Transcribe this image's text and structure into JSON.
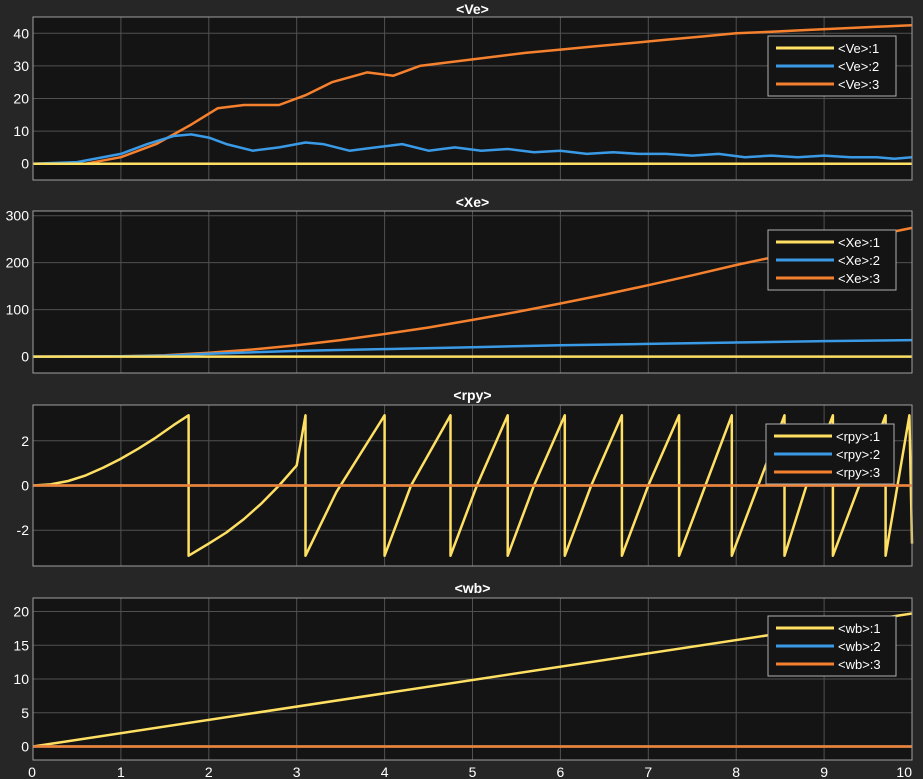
{
  "colors": {
    "background": "#262626",
    "plot_background": "#141414",
    "grid": "#505050",
    "axis_frame": "#a0a0a0",
    "series_1": "#ffe063",
    "series_2": "#3a9ae6",
    "series_3": "#f5812e"
  },
  "chart_data": [
    {
      "type": "line",
      "title": "<Ve>",
      "xlim": [
        0,
        10
      ],
      "ylim": [
        -5,
        45
      ],
      "xticks": [
        0,
        1,
        2,
        3,
        4,
        5,
        6,
        7,
        8,
        9,
        10
      ],
      "yticks": [
        0,
        10,
        20,
        30,
        40
      ],
      "grid": true,
      "legend_position": "top-right",
      "series": [
        {
          "name": "<Ve>:1",
          "x": [
            0,
            10
          ],
          "y": [
            0,
            0
          ]
        },
        {
          "name": "<Ve>:2",
          "x": [
            0,
            0.5,
            1,
            1.3,
            1.6,
            1.8,
            2.0,
            2.2,
            2.5,
            2.8,
            3.1,
            3.3,
            3.6,
            3.9,
            4.2,
            4.5,
            4.8,
            5.1,
            5.4,
            5.7,
            6.0,
            6.3,
            6.6,
            6.9,
            7.2,
            7.5,
            7.8,
            8.1,
            8.4,
            8.7,
            9.0,
            9.3,
            9.6,
            9.8,
            10
          ],
          "y": [
            0,
            0.5,
            3,
            6,
            8.5,
            9,
            8,
            6,
            4,
            5,
            6.5,
            6,
            4,
            5,
            6,
            4,
            5,
            4,
            4.5,
            3.5,
            4,
            3,
            3.5,
            3,
            3,
            2.5,
            3,
            2,
            2.5,
            2,
            2.5,
            2,
            2,
            1.5,
            2
          ]
        },
        {
          "name": "<Ve>:3",
          "x": [
            0,
            0.6,
            1,
            1.4,
            1.8,
            2.1,
            2.4,
            2.8,
            3.1,
            3.4,
            3.8,
            4.1,
            4.4,
            4.7,
            5.0,
            5.3,
            5.6,
            6.0,
            6.4,
            6.8,
            7.2,
            7.6,
            8.0,
            8.4,
            8.8,
            9.2,
            9.6,
            10
          ],
          "y": [
            0,
            0,
            2,
            6,
            12,
            17,
            18,
            18,
            21,
            25,
            28,
            27,
            30,
            31,
            32,
            33,
            34,
            35,
            36,
            37,
            38,
            39,
            40,
            40.5,
            41,
            41.5,
            42,
            42.5
          ]
        }
      ]
    },
    {
      "type": "line",
      "title": "<Xe>",
      "xlim": [
        0,
        10
      ],
      "ylim": [
        -35,
        310
      ],
      "xticks": [
        0,
        1,
        2,
        3,
        4,
        5,
        6,
        7,
        8,
        9,
        10
      ],
      "yticks": [
        0,
        100,
        200,
        300
      ],
      "grid": true,
      "legend_position": "top-right",
      "series": [
        {
          "name": "<Xe>:1",
          "x": [
            0,
            10
          ],
          "y": [
            0,
            0
          ]
        },
        {
          "name": "<Xe>:2",
          "x": [
            0,
            1,
            1.5,
            2,
            3,
            4,
            5,
            6,
            7,
            8,
            9,
            10
          ],
          "y": [
            0,
            0.5,
            2,
            6,
            12,
            16,
            20,
            24,
            27,
            30,
            33,
            35
          ]
        },
        {
          "name": "<Xe>:3",
          "x": [
            0,
            1,
            1.5,
            2,
            2.5,
            3,
            3.5,
            4,
            4.5,
            5,
            5.5,
            6,
            6.5,
            7,
            7.5,
            8,
            8.5,
            9,
            9.5,
            10
          ],
          "y": [
            0,
            0.5,
            3,
            8,
            15,
            24,
            35,
            48,
            62,
            78,
            95,
            113,
            132,
            152,
            173,
            195,
            215,
            235,
            255,
            274
          ]
        }
      ]
    },
    {
      "type": "line",
      "title": "<rpy>",
      "xlim": [
        0,
        10
      ],
      "ylim": [
        -3.6,
        3.6
      ],
      "xticks": [
        0,
        1,
        2,
        3,
        4,
        5,
        6,
        7,
        8,
        9,
        10
      ],
      "yticks": [
        -2,
        0,
        2
      ],
      "grid": true,
      "legend_position": "top-right",
      "series": [
        {
          "name": "<rpy>:1",
          "x": [
            0,
            0.2,
            0.4,
            0.6,
            0.8,
            1.0,
            1.2,
            1.4,
            1.6,
            1.77,
            1.77,
            2.0,
            2.2,
            2.4,
            2.6,
            2.8,
            3.0,
            3.1,
            3.1,
            3.45,
            3.45,
            4.0,
            4.0,
            4.3,
            4.3,
            4.75,
            4.75,
            5.05,
            5.05,
            5.4,
            5.4,
            5.7,
            5.7,
            6.05,
            6.05,
            6.35,
            6.35,
            6.7,
            6.7,
            7.0,
            7.0,
            7.35,
            7.35,
            7.65,
            7.65,
            7.95,
            7.95,
            8.25,
            8.25,
            8.55,
            8.55,
            8.8,
            8.8,
            9.1,
            9.1,
            9.4,
            9.4,
            9.7,
            9.7,
            9.97,
            9.97,
            10
          ],
          "y": [
            0,
            0.05,
            0.2,
            0.45,
            0.8,
            1.2,
            1.65,
            2.15,
            2.7,
            3.14,
            -3.14,
            -2.6,
            -2.1,
            -1.5,
            -0.8,
            0,
            0.9,
            3.14,
            -3.14,
            -0.3,
            -0.3,
            3.14,
            -3.14,
            0.0,
            0.0,
            3.14,
            -3.14,
            0.0,
            0.0,
            3.14,
            -3.14,
            0.0,
            0.0,
            3.14,
            -3.14,
            0.0,
            0.0,
            3.14,
            -3.14,
            0.0,
            0.0,
            3.14,
            -3.14,
            0.0,
            0.0,
            3.14,
            -3.14,
            0.0,
            0.0,
            3.14,
            -3.14,
            0.0,
            0.0,
            3.14,
            -3.14,
            0.0,
            0.0,
            3.14,
            -3.14,
            3.14,
            3.14,
            -2.6
          ]
        },
        {
          "name": "<rpy>:2",
          "x": [
            0,
            10
          ],
          "y": [
            0,
            0
          ]
        },
        {
          "name": "<rpy>:3",
          "x": [
            0,
            10
          ],
          "y": [
            0,
            0
          ]
        }
      ]
    },
    {
      "type": "line",
      "title": "<wb>",
      "xlim": [
        0,
        10
      ],
      "ylim": [
        -2,
        22
      ],
      "xticks": [
        0,
        1,
        2,
        3,
        4,
        5,
        6,
        7,
        8,
        9,
        10
      ],
      "yticks": [
        0,
        5,
        10,
        15,
        20
      ],
      "grid": true,
      "legend_position": "top-right",
      "series": [
        {
          "name": "<wb>:1",
          "x": [
            0,
            10
          ],
          "y": [
            0,
            19.7
          ]
        },
        {
          "name": "<wb>:2",
          "x": [
            0,
            10
          ],
          "y": [
            0,
            0
          ]
        },
        {
          "name": "<wb>:3",
          "x": [
            0,
            10
          ],
          "y": [
            0,
            0
          ]
        }
      ]
    }
  ]
}
